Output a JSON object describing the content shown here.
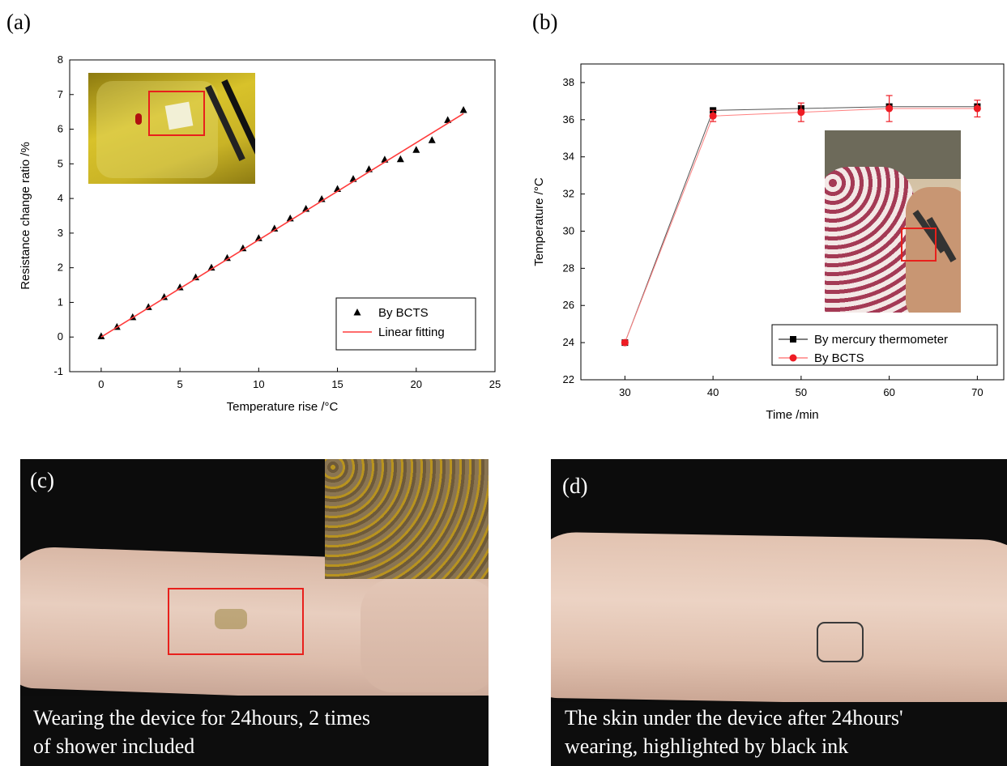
{
  "panels": {
    "a": {
      "letter": "(a)"
    },
    "b": {
      "letter": "(b)"
    },
    "c": {
      "letter": "(c)",
      "caption_line1": "Wearing the device for 24hours, 2 times",
      "caption_line2": "of shower included"
    },
    "d": {
      "letter": "(d)",
      "caption_line1": "The skin under the device after 24hours'",
      "caption_line2": "wearing, highlighted  by black ink"
    }
  },
  "chart_data": [
    {
      "type": "scatter",
      "xlabel": "Temperature rise /°C",
      "ylabel": "Resistance change ratio /%",
      "xlim": [
        -2,
        25
      ],
      "ylim": [
        -1,
        8
      ],
      "xticks": [
        0,
        5,
        10,
        15,
        20,
        25
      ],
      "yticks": [
        -1,
        0,
        1,
        2,
        3,
        4,
        5,
        6,
        7,
        8
      ],
      "legend_position": "bottom-right",
      "grid": false,
      "series": [
        {
          "name": "By BCTS",
          "marker": "triangle",
          "color": "#000000",
          "x": [
            0,
            1,
            2,
            3,
            4,
            5,
            6,
            7,
            8,
            9,
            10,
            11,
            12,
            13,
            14,
            15,
            16,
            17,
            18,
            19,
            20,
            21,
            22,
            23
          ],
          "y": [
            0.02,
            0.29,
            0.57,
            0.86,
            1.15,
            1.43,
            1.72,
            2.0,
            2.28,
            2.56,
            2.85,
            3.13,
            3.42,
            3.7,
            3.98,
            4.27,
            4.56,
            4.84,
            5.12,
            5.13,
            5.4,
            5.68,
            6.26,
            6.55
          ]
        },
        {
          "name": "Linear fitting",
          "marker": "line",
          "color": "#ff3b3b",
          "x": [
            0,
            23
          ],
          "y": [
            0.0,
            6.45
          ]
        }
      ]
    },
    {
      "type": "line",
      "xlabel": "Time /min",
      "ylabel": "Temperature /°C",
      "xlim": [
        25,
        73
      ],
      "ylim": [
        22,
        39
      ],
      "xticks": [
        30,
        40,
        50,
        60,
        70
      ],
      "yticks": [
        22,
        24,
        26,
        28,
        30,
        32,
        34,
        36,
        38
      ],
      "legend_position": "bottom-right",
      "grid": false,
      "series": [
        {
          "name": "By mercury thermometer",
          "marker": "square",
          "color": "#000000",
          "x": [
            30,
            40,
            50,
            60,
            70
          ],
          "y": [
            24.0,
            36.5,
            36.6,
            36.7,
            36.7
          ],
          "err": [
            0,
            0.1,
            0.15,
            0.15,
            0.15
          ]
        },
        {
          "name": "By BCTS",
          "marker": "circle",
          "color": "#ee1c24",
          "x": [
            30,
            40,
            50,
            60,
            70
          ],
          "y": [
            24.0,
            36.2,
            36.4,
            36.6,
            36.6
          ],
          "err": [
            0.1,
            0.3,
            0.5,
            0.7,
            0.45
          ]
        }
      ]
    }
  ]
}
